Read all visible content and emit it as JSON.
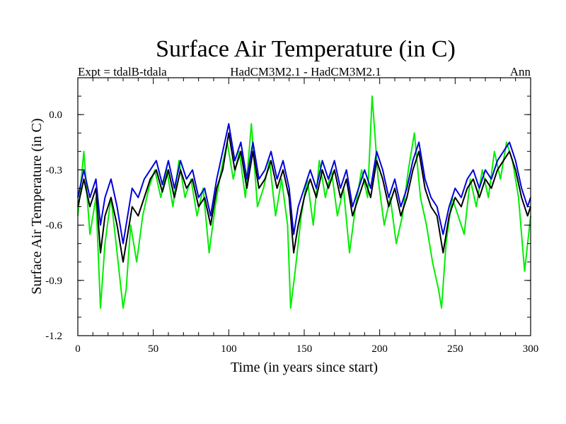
{
  "chart_data": {
    "type": "line",
    "title": "Surface Air Temperature (in C)",
    "subtitle_left": "Expt = tdalB-tdala",
    "subtitle_center": "HadCM3M2.1 - HadCM3M2.1",
    "subtitle_right": "Ann",
    "xlabel": "Time (in years since start)",
    "ylabel": "Surface Air Temperature (in C)",
    "xlim": [
      0,
      300
    ],
    "ylim": [
      -1.2,
      0.2
    ],
    "xticks": [
      0,
      50,
      100,
      150,
      200,
      250,
      300
    ],
    "xtick_labels": [
      "0",
      "50",
      "100",
      "150",
      "200",
      "250",
      "300"
    ],
    "yticks": [
      -1.2,
      -0.9,
      -0.6,
      -0.3,
      0.0
    ],
    "ytick_labels": [
      "-1.2",
      "-0.9",
      "-0.6",
      "-0.3",
      "0.0"
    ],
    "series": [
      {
        "name": "green",
        "color": "#00ee00",
        "x": [
          0,
          4,
          8,
          12,
          15,
          18,
          22,
          26,
          30,
          32,
          35,
          39,
          43,
          47,
          51,
          55,
          59,
          63,
          67,
          71,
          75,
          79,
          83,
          87,
          91,
          95,
          99,
          103,
          107,
          111,
          115,
          119,
          123,
          127,
          131,
          135,
          139,
          141,
          144,
          148,
          152,
          156,
          160,
          164,
          168,
          172,
          176,
          180,
          184,
          188,
          192,
          195,
          199,
          203,
          207,
          211,
          215,
          219,
          223,
          227,
          231,
          235,
          239,
          241,
          244,
          248,
          252,
          256,
          260,
          264,
          268,
          272,
          276,
          280,
          284,
          288,
          292,
          296,
          300
        ],
        "y": [
          -0.55,
          -0.2,
          -0.65,
          -0.45,
          -1.05,
          -0.7,
          -0.45,
          -0.75,
          -1.05,
          -0.95,
          -0.6,
          -0.8,
          -0.55,
          -0.4,
          -0.3,
          -0.45,
          -0.3,
          -0.5,
          -0.25,
          -0.45,
          -0.35,
          -0.55,
          -0.4,
          -0.75,
          -0.5,
          -0.3,
          -0.15,
          -0.35,
          -0.2,
          -0.45,
          -0.05,
          -0.5,
          -0.4,
          -0.25,
          -0.55,
          -0.35,
          -0.6,
          -1.05,
          -0.85,
          -0.55,
          -0.35,
          -0.6,
          -0.25,
          -0.45,
          -0.3,
          -0.55,
          -0.4,
          -0.75,
          -0.5,
          -0.3,
          -0.45,
          0.1,
          -0.35,
          -0.6,
          -0.45,
          -0.7,
          -0.55,
          -0.3,
          -0.1,
          -0.45,
          -0.6,
          -0.8,
          -0.95,
          -1.05,
          -0.7,
          -0.45,
          -0.55,
          -0.65,
          -0.35,
          -0.5,
          -0.3,
          -0.45,
          -0.2,
          -0.35,
          -0.15,
          -0.25,
          -0.45,
          -0.85,
          -0.55
        ]
      },
      {
        "name": "black",
        "color": "#000000",
        "x": [
          0,
          4,
          8,
          12,
          15,
          18,
          22,
          26,
          30,
          33,
          36,
          40,
          44,
          48,
          52,
          56,
          60,
          64,
          68,
          72,
          76,
          80,
          84,
          88,
          92,
          96,
          100,
          104,
          108,
          112,
          116,
          120,
          124,
          128,
          132,
          136,
          140,
          143,
          146,
          150,
          154,
          158,
          162,
          166,
          170,
          174,
          178,
          182,
          186,
          190,
          194,
          198,
          202,
          206,
          210,
          214,
          218,
          222,
          226,
          230,
          234,
          238,
          242,
          246,
          250,
          254,
          258,
          262,
          266,
          270,
          274,
          278,
          282,
          286,
          290,
          294,
          298,
          300
        ],
        "y": [
          -0.5,
          -0.35,
          -0.5,
          -0.4,
          -0.75,
          -0.55,
          -0.45,
          -0.6,
          -0.8,
          -0.65,
          -0.5,
          -0.55,
          -0.45,
          -0.35,
          -0.3,
          -0.42,
          -0.3,
          -0.45,
          -0.3,
          -0.4,
          -0.35,
          -0.5,
          -0.45,
          -0.6,
          -0.4,
          -0.3,
          -0.1,
          -0.3,
          -0.2,
          -0.4,
          -0.2,
          -0.4,
          -0.35,
          -0.25,
          -0.4,
          -0.3,
          -0.45,
          -0.75,
          -0.6,
          -0.45,
          -0.35,
          -0.45,
          -0.3,
          -0.4,
          -0.3,
          -0.45,
          -0.35,
          -0.55,
          -0.45,
          -0.35,
          -0.45,
          -0.25,
          -0.35,
          -0.5,
          -0.4,
          -0.55,
          -0.45,
          -0.3,
          -0.2,
          -0.4,
          -0.5,
          -0.55,
          -0.75,
          -0.55,
          -0.45,
          -0.5,
          -0.4,
          -0.35,
          -0.45,
          -0.35,
          -0.4,
          -0.3,
          -0.25,
          -0.2,
          -0.3,
          -0.45,
          -0.55,
          -0.5
        ]
      },
      {
        "name": "blue",
        "color": "#0000dd",
        "x": [
          0,
          4,
          8,
          12,
          15,
          18,
          22,
          26,
          30,
          33,
          36,
          40,
          44,
          48,
          52,
          56,
          60,
          64,
          68,
          72,
          76,
          80,
          84,
          88,
          92,
          96,
          100,
          104,
          108,
          112,
          116,
          120,
          124,
          128,
          132,
          136,
          140,
          143,
          146,
          150,
          154,
          158,
          162,
          166,
          170,
          174,
          178,
          182,
          186,
          190,
          194,
          198,
          202,
          206,
          210,
          214,
          218,
          222,
          226,
          230,
          234,
          238,
          242,
          246,
          250,
          254,
          258,
          262,
          266,
          270,
          274,
          278,
          282,
          286,
          290,
          294,
          298,
          300
        ],
        "y": [
          -0.45,
          -0.3,
          -0.45,
          -0.35,
          -0.6,
          -0.45,
          -0.35,
          -0.5,
          -0.7,
          -0.55,
          -0.4,
          -0.45,
          -0.35,
          -0.3,
          -0.25,
          -0.38,
          -0.25,
          -0.4,
          -0.25,
          -0.35,
          -0.3,
          -0.45,
          -0.4,
          -0.55,
          -0.35,
          -0.2,
          -0.05,
          -0.25,
          -0.15,
          -0.35,
          -0.15,
          -0.35,
          -0.3,
          -0.2,
          -0.35,
          -0.25,
          -0.4,
          -0.65,
          -0.5,
          -0.4,
          -0.3,
          -0.4,
          -0.25,
          -0.35,
          -0.25,
          -0.4,
          -0.3,
          -0.5,
          -0.4,
          -0.3,
          -0.4,
          -0.2,
          -0.3,
          -0.45,
          -0.35,
          -0.5,
          -0.4,
          -0.25,
          -0.15,
          -0.35,
          -0.45,
          -0.5,
          -0.65,
          -0.5,
          -0.4,
          -0.45,
          -0.35,
          -0.3,
          -0.4,
          -0.3,
          -0.35,
          -0.25,
          -0.2,
          -0.15,
          -0.25,
          -0.4,
          -0.5,
          -0.45
        ]
      }
    ]
  }
}
